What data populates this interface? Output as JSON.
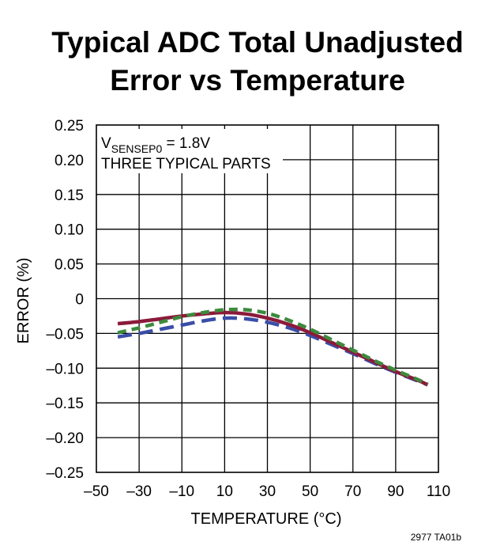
{
  "chart_data": {
    "type": "line",
    "title_line1": "Typical ADC Total Unadjusted",
    "title_line2": "Error vs Temperature",
    "xlabel": "TEMPERATURE (°C)",
    "ylabel": "ERROR (%)",
    "xlim": [
      -50,
      110
    ],
    "ylim": [
      -0.25,
      0.25
    ],
    "x_ticks": [
      -50,
      -30,
      -10,
      10,
      30,
      50,
      70,
      90,
      110
    ],
    "x_tick_labels": [
      "–50",
      "–30",
      "–10",
      "10",
      "30",
      "50",
      "70",
      "90",
      "110"
    ],
    "y_ticks": [
      0.25,
      0.2,
      0.15,
      0.1,
      0.05,
      0,
      -0.05,
      -0.1,
      -0.15,
      -0.2,
      -0.25
    ],
    "y_tick_labels": [
      "0.25",
      "0.20",
      "0.15",
      "0.10",
      "0.05",
      "0",
      "–0.05",
      "–0.10",
      "–0.15",
      "–0.20",
      "–0.25"
    ],
    "annotation": {
      "v_main": "V",
      "v_sub": "SENSEP0",
      "v_value": " = 1.8V",
      "line2": "THREE TYPICAL PARTS"
    },
    "figure_id": "2977 TA01b",
    "series": [
      {
        "name": "part-1",
        "color": "#8b1a3a",
        "dash": "solid",
        "x": [
          -40,
          -30,
          -20,
          -10,
          0,
          10,
          20,
          30,
          40,
          50,
          60,
          70,
          80,
          90,
          100,
          105
        ],
        "values": [
          -0.036,
          -0.033,
          -0.029,
          -0.025,
          -0.022,
          -0.02,
          -0.022,
          -0.028,
          -0.037,
          -0.049,
          -0.063,
          -0.077,
          -0.091,
          -0.105,
          -0.117,
          -0.124
        ]
      },
      {
        "name": "part-2",
        "color": "#3a4ea8",
        "dash": "long-dash",
        "x": [
          -40,
          -30,
          -20,
          -10,
          0,
          10,
          20,
          30,
          40,
          50,
          60,
          70,
          80,
          90,
          100,
          105
        ],
        "values": [
          -0.055,
          -0.05,
          -0.044,
          -0.038,
          -0.032,
          -0.028,
          -0.029,
          -0.034,
          -0.042,
          -0.053,
          -0.066,
          -0.079,
          -0.093,
          -0.106,
          -0.118,
          -0.124
        ]
      },
      {
        "name": "part-3",
        "color": "#3d8a3d",
        "dash": "short-dash",
        "x": [
          -40,
          -30,
          -20,
          -10,
          0,
          10,
          20,
          30,
          40,
          50,
          60,
          70,
          80,
          90,
          100,
          105
        ],
        "values": [
          -0.049,
          -0.042,
          -0.034,
          -0.026,
          -0.02,
          -0.016,
          -0.016,
          -0.021,
          -0.031,
          -0.044,
          -0.059,
          -0.074,
          -0.089,
          -0.103,
          -0.116,
          -0.123
        ]
      }
    ]
  }
}
